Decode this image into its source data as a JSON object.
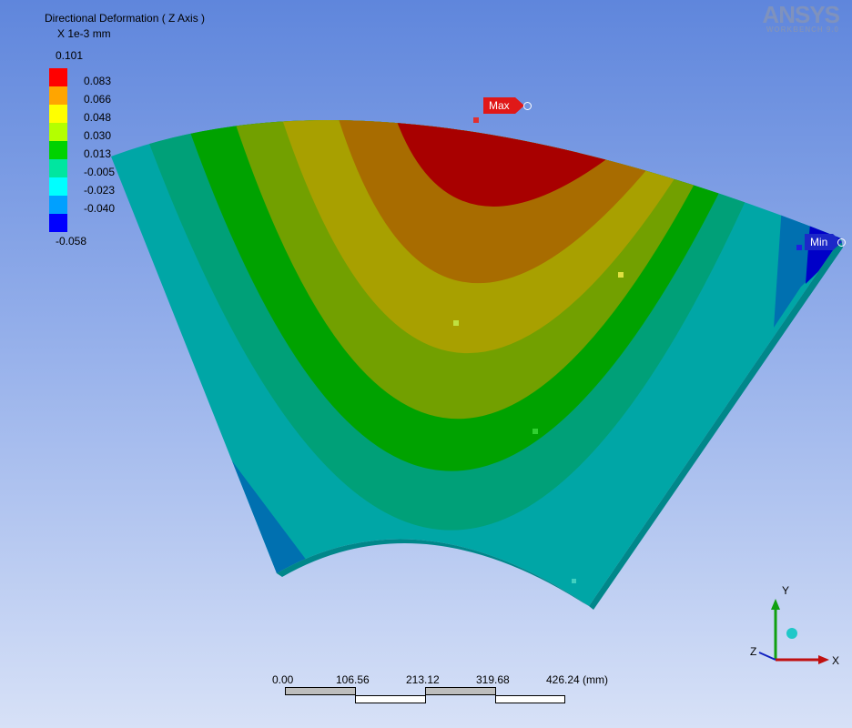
{
  "legend": {
    "title": "Directional Deformation ( Z Axis )",
    "unit": "X 1e-3 mm",
    "max": "0.101",
    "min": "-0.058",
    "levels": [
      {
        "label": "0.083",
        "color": "#ff0000"
      },
      {
        "label": "0.066",
        "color": "#ffa500"
      },
      {
        "label": "0.048",
        "color": "#ffff00"
      },
      {
        "label": "0.030",
        "color": "#b4ff00"
      },
      {
        "label": "0.013",
        "color": "#00d200"
      },
      {
        "label": "-0.005",
        "color": "#00e6a0"
      },
      {
        "label": "-0.023",
        "color": "#00ffff"
      },
      {
        "label": "-0.040",
        "color": "#00a0ff"
      },
      {
        "label": "",
        "color": "#0000ff"
      }
    ]
  },
  "logo": {
    "name": "ANSYS",
    "sub": "WORKBENCH 9.0"
  },
  "probes": {
    "max": "Max",
    "min": "Min"
  },
  "scale": {
    "ticks": [
      "0.00",
      "106.56",
      "213.12",
      "319.68",
      "426.24 (mm)"
    ]
  },
  "triad": {
    "x": "X",
    "y": "Y",
    "z": "Z"
  },
  "colors": {
    "red": "#a80000",
    "orange": "#a86c00",
    "yellow": "#a8a000",
    "lime": "#72a000",
    "green": "#00a200",
    "teal": "#00a078",
    "cyan": "#00a6a6",
    "blue": "#0070b0",
    "darkblue": "#0000c8"
  }
}
